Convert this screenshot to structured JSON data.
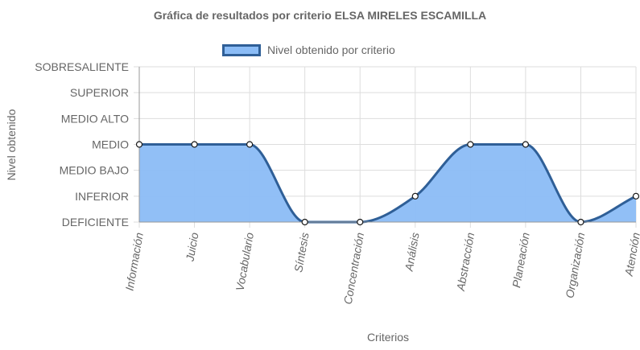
{
  "chart_data": {
    "type": "area",
    "title": "Gráfica de resultados por criterio ELSA MIRELES ESCAMILLA",
    "xlabel": "Criterios",
    "ylabel": "Nivel obtenido",
    "levels": [
      "DEFICIENTE",
      "INFERIOR",
      "MEDIO BAJO",
      "MEDIO",
      "MEDIO ALTO",
      "SUPERIOR",
      "SOBRESALIENTE"
    ],
    "categories": [
      "Información",
      "Juicio",
      "Vocabulario",
      "Síntesis",
      "Concentración",
      "Análisis",
      "Abstracción",
      "Planeación",
      "Organización",
      "Atención"
    ],
    "series": [
      {
        "name": "Nivel obtenido por criterio",
        "values": [
          "MEDIO",
          "MEDIO",
          "MEDIO",
          "DEFICIENTE",
          "DEFICIENTE",
          "INFERIOR",
          "MEDIO",
          "MEDIO",
          "DEFICIENTE",
          "INFERIOR"
        ]
      }
    ],
    "grid": true,
    "legend_position": "top",
    "colors": {
      "fill": "#8bbcf6",
      "line": "#2f5f97",
      "grid": "#dddddd",
      "axis": "#999999"
    }
  }
}
